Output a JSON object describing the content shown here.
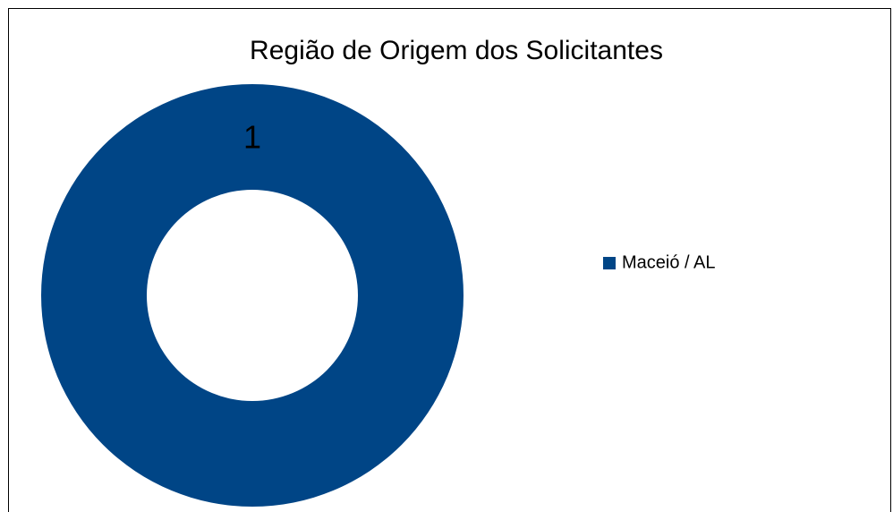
{
  "chart_data": {
    "type": "doughnut",
    "title": "Região de Origem dos Solicitantes",
    "categories": [
      "Maceió / AL"
    ],
    "values": [
      1
    ],
    "colors": [
      "#004586"
    ],
    "legend": "right"
  }
}
